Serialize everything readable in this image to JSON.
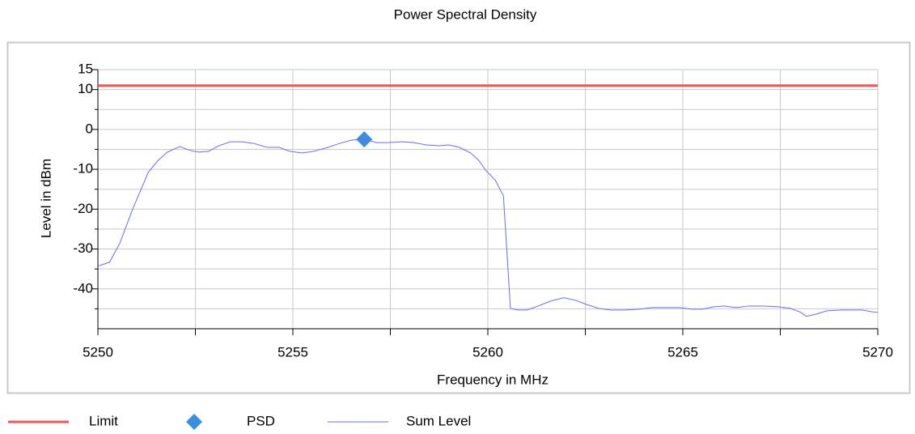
{
  "chart_data": {
    "type": "line",
    "title": "Power Spectral Density",
    "xlabel": "Frequency in MHz",
    "ylabel": "Level in dBm",
    "xlim": [
      5250,
      5270
    ],
    "xticks": [
      5250,
      5255,
      5260,
      5265,
      5270
    ],
    "xminor": [
      5252.5,
      5257.5,
      5262.5,
      5267.5
    ],
    "ylim": [
      -50,
      15
    ],
    "yticks": [
      15,
      10,
      0,
      -10,
      -20,
      -30,
      -40
    ],
    "yminor": [
      5,
      -5,
      -15,
      -25,
      -35,
      -45
    ],
    "grid": true,
    "legend": "bottom",
    "series": [
      {
        "name": "Limit",
        "color": "#f05454",
        "style": "line",
        "width": 3,
        "x": [
          5250,
          5270
        ],
        "values": [
          11,
          11
        ]
      },
      {
        "name": "PSD",
        "color": "#3a8fdf",
        "style": "marker",
        "x": [
          5256.83
        ],
        "values": [
          -2.5
        ]
      },
      {
        "name": "Sum Level",
        "color": "#6a6aff",
        "style": "line",
        "width": 1,
        "x": [
          5250,
          5250.3,
          5250.56,
          5250.9,
          5251.29,
          5251.54,
          5251.78,
          5252.1,
          5252.37,
          5252.6,
          5252.84,
          5253.1,
          5253.4,
          5253.7,
          5254.0,
          5254.34,
          5254.65,
          5254.92,
          5255.23,
          5255.54,
          5255.9,
          5256.2,
          5256.5,
          5256.83,
          5257.14,
          5257.45,
          5257.8,
          5258.1,
          5258.42,
          5258.75,
          5259.0,
          5259.27,
          5259.56,
          5259.77,
          5259.94,
          5260.19,
          5260.4,
          5260.58,
          5260.77,
          5261.0,
          5261.29,
          5261.6,
          5261.95,
          5262.26,
          5262.53,
          5262.84,
          5263.15,
          5263.5,
          5263.88,
          5264.2,
          5264.5,
          5264.92,
          5265.23,
          5265.5,
          5265.79,
          5266.06,
          5266.37,
          5266.68,
          5267.1,
          5267.45,
          5267.76,
          5268.03,
          5268.17,
          5268.44,
          5268.69,
          5269.07,
          5269.59,
          5269.83,
          5270
        ],
        "values": [
          -34.3,
          -33.3,
          -28.6,
          -19.8,
          -10.8,
          -7.8,
          -5.7,
          -4.3,
          -5.3,
          -5.7,
          -5.5,
          -4.1,
          -3.1,
          -3.1,
          -3.5,
          -4.5,
          -4.5,
          -5.5,
          -5.9,
          -5.5,
          -4.5,
          -3.5,
          -2.7,
          -2.4,
          -3.3,
          -3.3,
          -3.1,
          -3.3,
          -3.9,
          -4.1,
          -3.9,
          -4.5,
          -5.9,
          -7.8,
          -10.2,
          -12.7,
          -16.7,
          -44.9,
          -45.3,
          -45.3,
          -44.3,
          -43.1,
          -42.2,
          -42.9,
          -43.9,
          -44.9,
          -45.3,
          -45.3,
          -45.1,
          -44.7,
          -44.7,
          -44.7,
          -45.1,
          -45.1,
          -44.5,
          -44.3,
          -44.7,
          -44.3,
          -44.3,
          -44.5,
          -44.9,
          -45.9,
          -46.9,
          -46.3,
          -45.5,
          -45.3,
          -45.3,
          -45.7,
          -45.9
        ]
      }
    ]
  }
}
